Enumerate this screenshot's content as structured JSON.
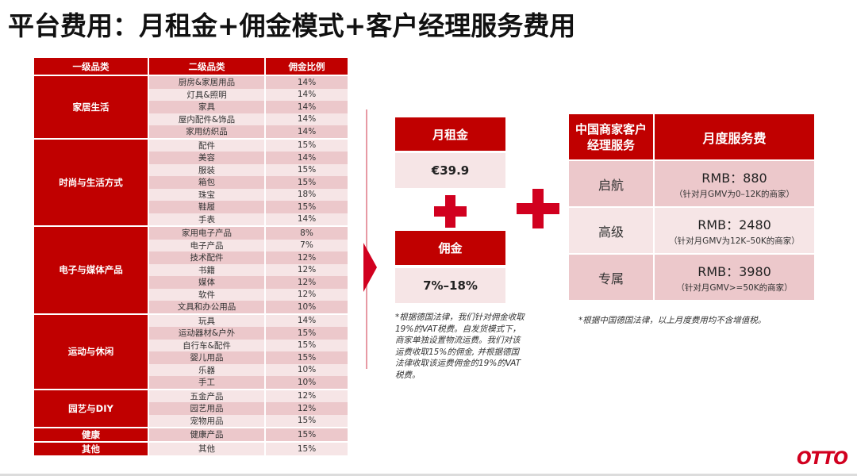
{
  "title": "平台费用：月租金+佣金模式+客户经理服务费用",
  "commission_table": {
    "headers": [
      "一级品类",
      "二级品类",
      "佣金比例"
    ],
    "groups": [
      {
        "name": "家居生活",
        "items": [
          {
            "sub": "厨房&家居用品",
            "rate": "14%"
          },
          {
            "sub": "灯具&照明",
            "rate": "14%"
          },
          {
            "sub": "家具",
            "rate": "14%"
          },
          {
            "sub": "屋内配件&饰品",
            "rate": "14%"
          },
          {
            "sub": "家用纺织品",
            "rate": "14%"
          }
        ]
      },
      {
        "name": "时尚与生活方式",
        "items": [
          {
            "sub": "配件",
            "rate": "15%"
          },
          {
            "sub": "美容",
            "rate": "14%"
          },
          {
            "sub": "服装",
            "rate": "15%"
          },
          {
            "sub": "箱包",
            "rate": "15%"
          },
          {
            "sub": "珠宝",
            "rate": "18%"
          },
          {
            "sub": "鞋履",
            "rate": "15%"
          },
          {
            "sub": "手表",
            "rate": "14%"
          }
        ]
      },
      {
        "name": "电子与媒体产品",
        "items": [
          {
            "sub": "家用电子产品",
            "rate": "8%"
          },
          {
            "sub": "电子产品",
            "rate": "7%"
          },
          {
            "sub": "技术配件",
            "rate": "12%"
          },
          {
            "sub": "书籍",
            "rate": "12%"
          },
          {
            "sub": "媒体",
            "rate": "12%"
          },
          {
            "sub": "软件",
            "rate": "12%"
          },
          {
            "sub": "文具和办公用品",
            "rate": "10%"
          }
        ]
      },
      {
        "name": "运动与休闲",
        "items": [
          {
            "sub": "玩具",
            "rate": "14%"
          },
          {
            "sub": "运动器材&户外",
            "rate": "15%"
          },
          {
            "sub": "自行车&配件",
            "rate": "15%"
          },
          {
            "sub": "婴儿用品",
            "rate": "15%"
          },
          {
            "sub": "乐器",
            "rate": "10%"
          },
          {
            "sub": "手工",
            "rate": "10%"
          }
        ]
      },
      {
        "name": "园艺与DIY",
        "items": [
          {
            "sub": "五金产品",
            "rate": "12%"
          },
          {
            "sub": "园艺用品",
            "rate": "12%"
          },
          {
            "sub": "宠物用品",
            "rate": "15%"
          }
        ]
      },
      {
        "name": "健康",
        "items": [
          {
            "sub": "健康产品",
            "rate": "15%"
          }
        ]
      },
      {
        "name": "其他",
        "items": [
          {
            "sub": "其他",
            "rate": "15%"
          }
        ]
      }
    ]
  },
  "fees": {
    "rent_label": "月租金",
    "rent_value": "€39.9",
    "commission_label": "佣金",
    "commission_value": "7%–18%",
    "note": "*根据德国法律，我们针对佣金收取19%的VAT税费。自发货模式下，商家单独设置物流运费。我们对该运费收取15%的佣金, 并根据德国法律收取该运费佣金的19%的VAT税费。"
  },
  "service_table": {
    "header_left": "中国商家客户经理服务",
    "header_right": "月度服务费",
    "rows": [
      {
        "tier": "启航",
        "price": "RMB：880",
        "condition": "（针对月GMV为0–12K的商家）"
      },
      {
        "tier": "高级",
        "price": "RMB：2480",
        "condition": "（针对月GMV为12K–50K的商家）"
      },
      {
        "tier": "专属",
        "price": "RMB：3980",
        "condition": "（针对月GMV>=50K的商家）"
      }
    ],
    "note": "*根据中国德国法律，以上月度费用均不含增值税。"
  },
  "logo": "OTTO",
  "colors": {
    "brand_red": "#c00000",
    "accent_red": "#d1001f",
    "pink": "#ecc8cb",
    "light_pink": "#f6e5e6"
  }
}
